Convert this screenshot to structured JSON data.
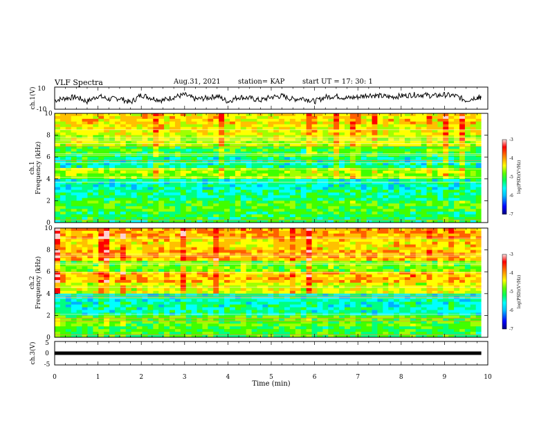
{
  "header": {
    "title": "VLF Spectra",
    "date": "Aug.31, 2021",
    "station": "station= KAP",
    "start": "start  UT  =   17: 30: 1"
  },
  "chart_data": [
    {
      "type": "line",
      "panel": "ch1-waveform",
      "ylabel": "ch.1(V)",
      "ylim": [
        -10,
        10
      ],
      "ytick_labels": [
        "10",
        "-10"
      ],
      "x": [
        0,
        0.25,
        0.5,
        0.75,
        1,
        1.25,
        1.5,
        1.75,
        2,
        2.25,
        2.5,
        2.75,
        3,
        3.25,
        3.5,
        3.75,
        4,
        4.25,
        4.5,
        4.75,
        5,
        5.25,
        5.5,
        5.75,
        6,
        6.25,
        6.5,
        6.75,
        7,
        7.25,
        7.5,
        7.75,
        8,
        8.25,
        8.5,
        8.75,
        9,
        9.25,
        9.5,
        9.75,
        9.85
      ],
      "y": [
        -2,
        0,
        1,
        -3,
        2,
        -1,
        0,
        -4,
        3,
        0,
        -2,
        1,
        3,
        -1,
        0,
        2,
        -3,
        1,
        0,
        -2,
        1,
        2,
        -1,
        0,
        -3,
        1,
        2,
        0,
        1,
        3,
        2,
        1,
        2,
        3,
        3,
        2,
        3,
        2,
        -2,
        1,
        0
      ]
    },
    {
      "type": "heatmap",
      "panel": "ch1-spectrogram",
      "ylabel": "Frequency (kHz)",
      "ylabel2": "ch.1",
      "ylim": [
        0,
        10
      ],
      "ytick_labels": [
        "0",
        "2",
        "4",
        "6",
        "8",
        "10"
      ],
      "colorbar": {
        "label": "log(PSD)(V²/Hz)",
        "range": [
          -7,
          -3
        ],
        "tick_labels": [
          "-3",
          "-4",
          "-5",
          "-6",
          "-7"
        ]
      },
      "colormap": [
        "#000080",
        "#0000ff",
        "#00b0ff",
        "#00ffff",
        "#00ff80",
        "#40ff00",
        "#a0ff00",
        "#ffff00",
        "#ffc000",
        "#ff6000",
        "#ff0000",
        "#ffd0d0"
      ],
      "band_levels": [
        {
          "freq_khz": 0.5,
          "value": -5.4
        },
        {
          "freq_khz": 1.5,
          "value": -5.2
        },
        {
          "freq_khz": 2.5,
          "value": -5.6
        },
        {
          "freq_khz": 3.5,
          "value": -5.8
        },
        {
          "freq_khz": 4.5,
          "value": -4.9
        },
        {
          "freq_khz": 5.5,
          "value": -5.7
        },
        {
          "freq_khz": 6.5,
          "value": -5.3
        },
        {
          "freq_khz": 7.5,
          "value": -4.7
        },
        {
          "freq_khz": 8.5,
          "value": -4.5
        },
        {
          "freq_khz": 9.5,
          "value": -4.3
        }
      ]
    },
    {
      "type": "heatmap",
      "panel": "ch2-spectrogram",
      "ylabel": "Frequency (kHz)",
      "ylabel2": "ch.2",
      "ylim": [
        0,
        10
      ],
      "ytick_labels": [
        "0",
        "2",
        "4",
        "6",
        "8",
        "10"
      ],
      "colorbar": {
        "label": "log(PSD)(V²/Hz)",
        "range": [
          -7,
          -3
        ],
        "tick_labels": [
          "-3",
          "-4",
          "-5",
          "-6",
          "-7"
        ]
      },
      "colormap": [
        "#000080",
        "#0000ff",
        "#00b0ff",
        "#00ffff",
        "#00ff80",
        "#40ff00",
        "#a0ff00",
        "#ffff00",
        "#ffc000",
        "#ff6000",
        "#ff0000",
        "#ffd0d0"
      ],
      "band_levels": [
        {
          "freq_khz": 0.5,
          "value": -5.3
        },
        {
          "freq_khz": 1.5,
          "value": -5.1
        },
        {
          "freq_khz": 2.5,
          "value": -5.7
        },
        {
          "freq_khz": 3.5,
          "value": -5.8
        },
        {
          "freq_khz": 4.5,
          "value": -4.6
        },
        {
          "freq_khz": 5.5,
          "value": -4.2
        },
        {
          "freq_khz": 6.5,
          "value": -5.0
        },
        {
          "freq_khz": 7.5,
          "value": -4.1
        },
        {
          "freq_khz": 8.5,
          "value": -4.3
        },
        {
          "freq_khz": 9.5,
          "value": -4.0
        }
      ]
    },
    {
      "type": "line",
      "panel": "ch3-waveform",
      "ylabel": "ch.3(V)",
      "ylim": [
        -5,
        5
      ],
      "ytick_labels": [
        "5",
        "0",
        "-5"
      ],
      "x": [
        0,
        9.85
      ],
      "y": [
        0,
        0
      ]
    }
  ],
  "xaxis": {
    "label": "Time (min)",
    "range": [
      0,
      10
    ],
    "tick_labels": [
      "0",
      "1",
      "2",
      "3",
      "4",
      "5",
      "6",
      "7",
      "8",
      "9",
      "10"
    ]
  }
}
